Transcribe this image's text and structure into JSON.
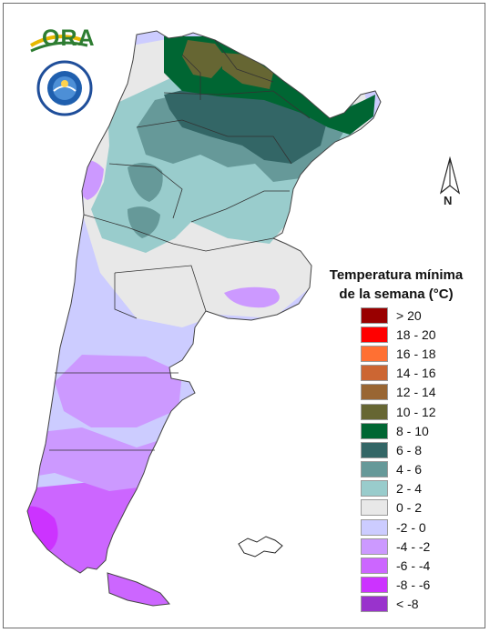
{
  "logo": {
    "text": "ORA"
  },
  "north_arrow": {
    "letter": "N"
  },
  "legend": {
    "title_line1": "Temperatura mínima",
    "title_line2": "de la semana (°C)",
    "items": [
      {
        "label": "> 20",
        "color": "#990000"
      },
      {
        "label": "18 - 20",
        "color": "#ff0000"
      },
      {
        "label": "16 - 18",
        "color": "#ff7033"
      },
      {
        "label": "14 - 16",
        "color": "#cc6633"
      },
      {
        "label": "12 - 14",
        "color": "#996633"
      },
      {
        "label": "10 - 12",
        "color": "#666633"
      },
      {
        "label": "8 - 10",
        "color": "#006633"
      },
      {
        "label": "6 - 8",
        "color": "#336666"
      },
      {
        "label": "4 - 6",
        "color": "#669999"
      },
      {
        "label": "2 - 4",
        "color": "#99cccc"
      },
      {
        "label": "0 - 2",
        "color": "#e8e8e8"
      },
      {
        "label": "-2 - 0",
        "color": "#ccccff"
      },
      {
        "label": "-4 - -2",
        "color": "#cc99ff"
      },
      {
        "label": "-6 - -4",
        "color": "#cc66ff"
      },
      {
        "label": "-8 - -6",
        "color": "#cc33ff"
      },
      {
        "label": "< -8",
        "color": "#9933cc"
      }
    ]
  }
}
